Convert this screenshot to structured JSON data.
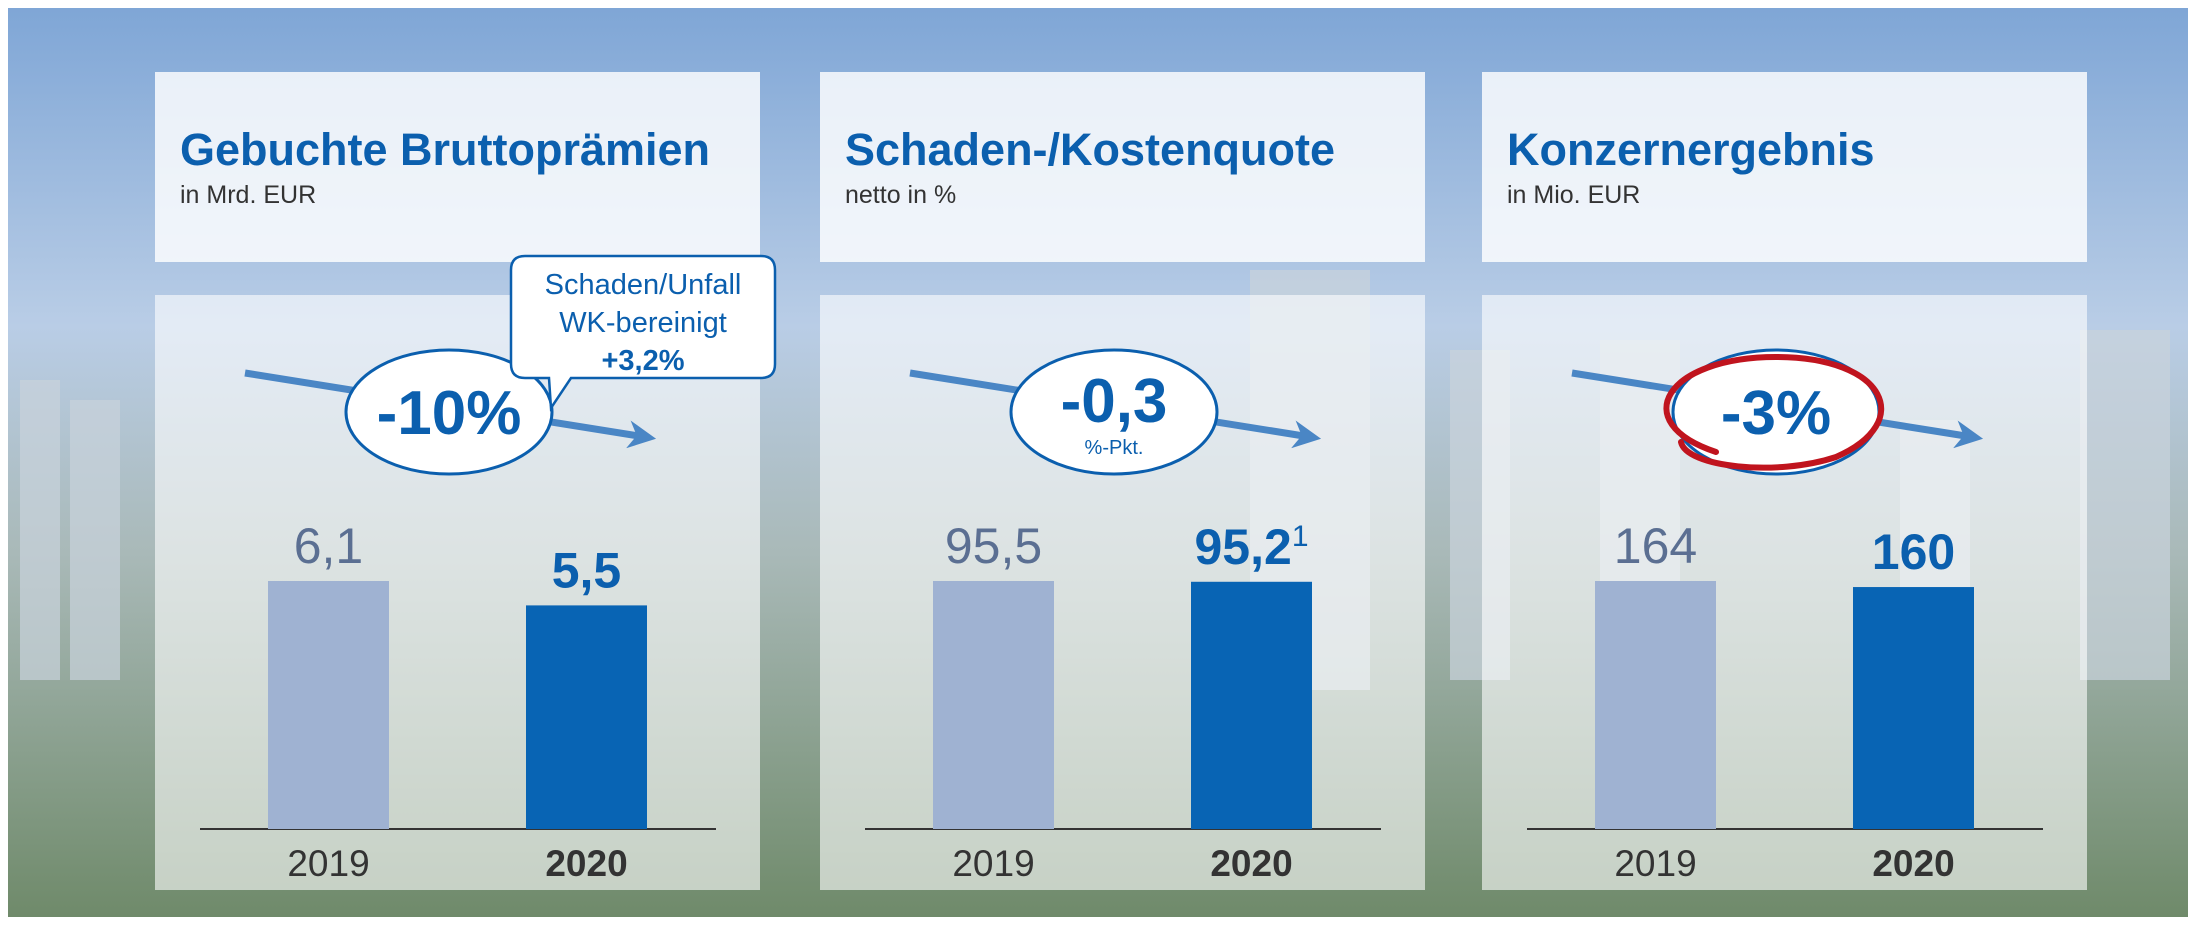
{
  "chart_data": [
    {
      "type": "bar",
      "title": "Gebuchte Bruttoprämien",
      "subtitle": "in Mrd. EUR",
      "categories": [
        "2019",
        "2020"
      ],
      "values": [
        6.1,
        5.5
      ],
      "value_labels": [
        "6,1",
        "5,5"
      ],
      "colors": [
        "#9fb2d2",
        "#0864b4"
      ],
      "change": "-10%",
      "callout": [
        "Schaden/Unfall",
        "WK-bereinigt",
        "+3,2%"
      ]
    },
    {
      "type": "bar",
      "title": "Schaden-/Kostenquote",
      "subtitle": "netto in %",
      "categories": [
        "2019",
        "2020"
      ],
      "values": [
        95.5,
        95.2
      ],
      "value_labels": [
        "95,5",
        "95,2"
      ],
      "footnote": "1",
      "colors": [
        "#9fb2d2",
        "#0864b4"
      ],
      "change": "-0,3",
      "change_unit": "%-Pkt."
    },
    {
      "type": "bar",
      "title": "Konzernergebnis",
      "subtitle": "in Mio. EUR",
      "categories": [
        "2019",
        "2020"
      ],
      "values": [
        164,
        160
      ],
      "colors": [
        "#9fb2d2",
        "#0864b4"
      ],
      "change": "-3%",
      "highlight_color": "#c0141e"
    }
  ]
}
